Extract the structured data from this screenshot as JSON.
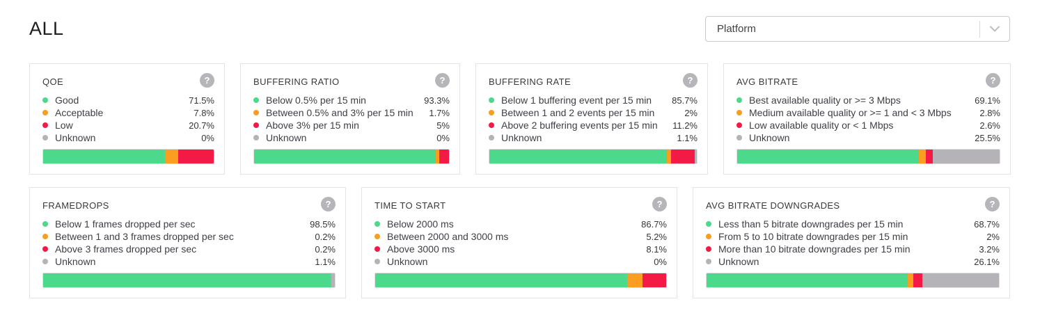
{
  "page": {
    "title": "ALL"
  },
  "filter": {
    "placeholder": "Platform"
  },
  "help_icon_glyph": "?",
  "colors": {
    "positive": "#4cd98b",
    "warning": "#fa9d20",
    "negative": "#f31b45",
    "unknown": "#b6b3b8"
  },
  "cards": [
    {
      "title": "QOE",
      "rows": [
        {
          "label": "Good",
          "value": "71.5%",
          "pct": 71.5,
          "color": "positive"
        },
        {
          "label": "Acceptable",
          "value": "7.8%",
          "pct": 7.8,
          "color": "warning"
        },
        {
          "label": "Low",
          "value": "20.7%",
          "pct": 20.7,
          "color": "negative"
        },
        {
          "label": "Unknown",
          "value": "0%",
          "pct": 0,
          "color": "unknown"
        }
      ]
    },
    {
      "title": "BUFFERING RATIO",
      "rows": [
        {
          "label": "Below 0.5% per 15 min",
          "value": "93.3%",
          "pct": 93.3,
          "color": "positive"
        },
        {
          "label": "Between 0.5% and 3% per 15 min",
          "value": "1.7%",
          "pct": 1.7,
          "color": "warning"
        },
        {
          "label": "Above 3% per 15 min",
          "value": "5%",
          "pct": 5,
          "color": "negative"
        },
        {
          "label": "Unknown",
          "value": "0%",
          "pct": 0,
          "color": "unknown"
        }
      ]
    },
    {
      "title": "BUFFERING RATE",
      "rows": [
        {
          "label": "Below 1 buffering event per 15 min",
          "value": "85.7%",
          "pct": 85.7,
          "color": "positive"
        },
        {
          "label": "Between 1 and 2 events per 15 min",
          "value": "2%",
          "pct": 2,
          "color": "warning"
        },
        {
          "label": "Above 2 buffering events per 15 min",
          "value": "11.2%",
          "pct": 11.2,
          "color": "negative"
        },
        {
          "label": "Unknown",
          "value": "1.1%",
          "pct": 1.1,
          "color": "unknown"
        }
      ]
    },
    {
      "title": "AVG BITRATE",
      "rows": [
        {
          "label": "Best available quality or >= 3 Mbps",
          "value": "69.1%",
          "pct": 69.1,
          "color": "positive"
        },
        {
          "label": "Medium available quality or >= 1 and < 3 Mbps",
          "value": "2.8%",
          "pct": 2.8,
          "color": "warning"
        },
        {
          "label": "Low available quality or < 1 Mbps",
          "value": "2.6%",
          "pct": 2.6,
          "color": "negative"
        },
        {
          "label": "Unknown",
          "value": "25.5%",
          "pct": 25.5,
          "color": "unknown"
        }
      ]
    },
    {
      "title": "FRAMEDROPS",
      "rows": [
        {
          "label": "Below 1 frames dropped per sec",
          "value": "98.5%",
          "pct": 98.5,
          "color": "positive"
        },
        {
          "label": "Between 1 and 3 frames dropped per sec",
          "value": "0.2%",
          "pct": 0.2,
          "color": "warning"
        },
        {
          "label": "Above 3 frames dropped per sec",
          "value": "0.2%",
          "pct": 0.2,
          "color": "negative"
        },
        {
          "label": "Unknown",
          "value": "1.1%",
          "pct": 1.1,
          "color": "unknown"
        }
      ]
    },
    {
      "title": "TIME TO START",
      "rows": [
        {
          "label": "Below 2000 ms",
          "value": "86.7%",
          "pct": 86.7,
          "color": "positive"
        },
        {
          "label": "Between 2000 and 3000 ms",
          "value": "5.2%",
          "pct": 5.2,
          "color": "warning"
        },
        {
          "label": "Above 3000 ms",
          "value": "8.1%",
          "pct": 8.1,
          "color": "negative"
        },
        {
          "label": "Unknown",
          "value": "0%",
          "pct": 0,
          "color": "unknown"
        }
      ]
    },
    {
      "title": "AVG BITRATE DOWNGRADES",
      "rows": [
        {
          "label": "Less than 5 bitrate downgrades per 15 min",
          "value": "68.7%",
          "pct": 68.7,
          "color": "positive"
        },
        {
          "label": "From 5 to 10 bitrate downgrades per 15 min",
          "value": "2%",
          "pct": 2,
          "color": "warning"
        },
        {
          "label": "More than 10 bitrate downgrades per 15 min",
          "value": "3.2%",
          "pct": 3.2,
          "color": "negative"
        },
        {
          "label": "Unknown",
          "value": "26.1%",
          "pct": 26.1,
          "color": "unknown"
        }
      ]
    }
  ]
}
